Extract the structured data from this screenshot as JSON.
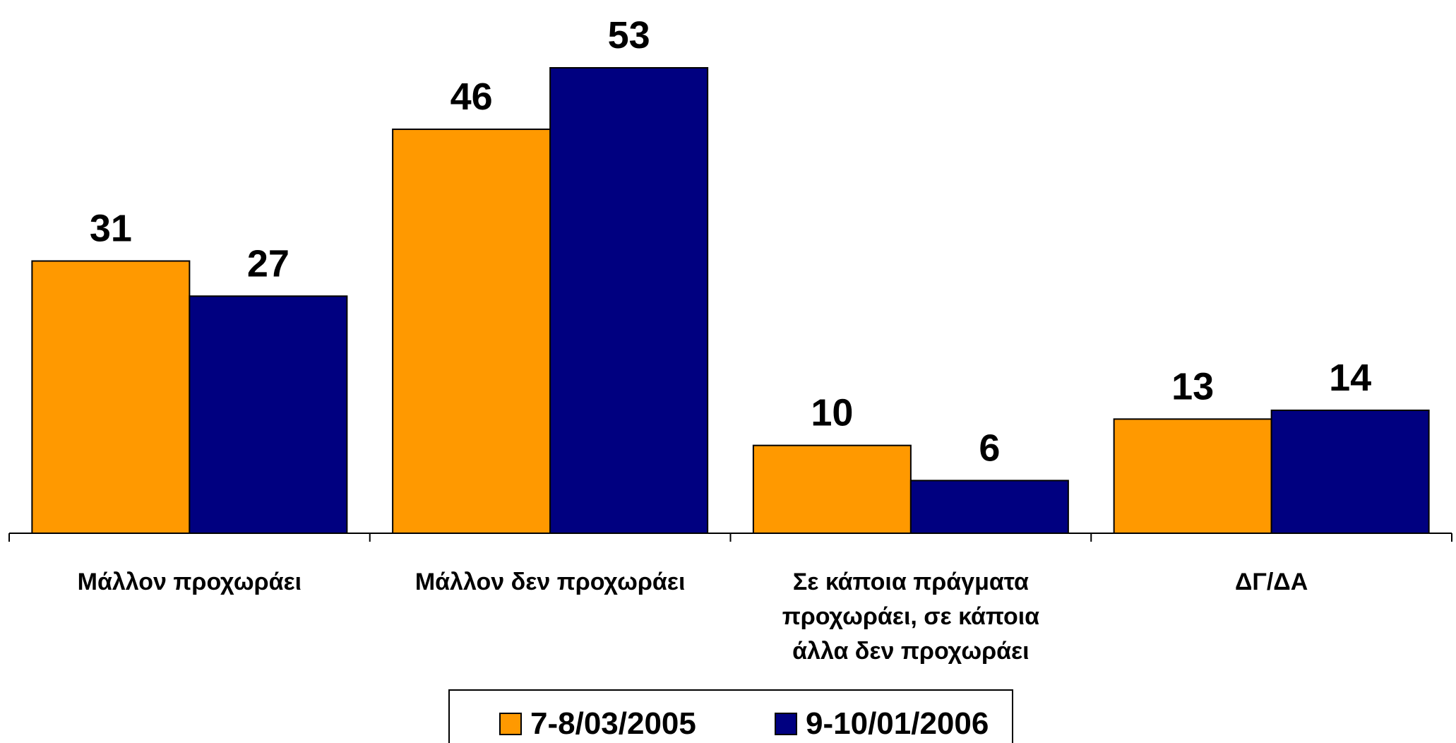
{
  "chart_data": {
    "type": "bar",
    "categories": [
      "Μάλλον προχωράει",
      "Μάλλον δεν προχωράει",
      "Σε κάποια πράγματα προχωράει, σε κάποια άλλα δεν προχωράει",
      "ΔΓ/ΔΑ"
    ],
    "series": [
      {
        "name": "7-8/03/2005",
        "color": "#FF9900",
        "values": [
          31,
          46,
          10,
          13
        ]
      },
      {
        "name": "9-10/01/2006",
        "color": "#000080",
        "values": [
          27,
          53,
          6,
          14
        ]
      }
    ],
    "legend": "bottom"
  }
}
